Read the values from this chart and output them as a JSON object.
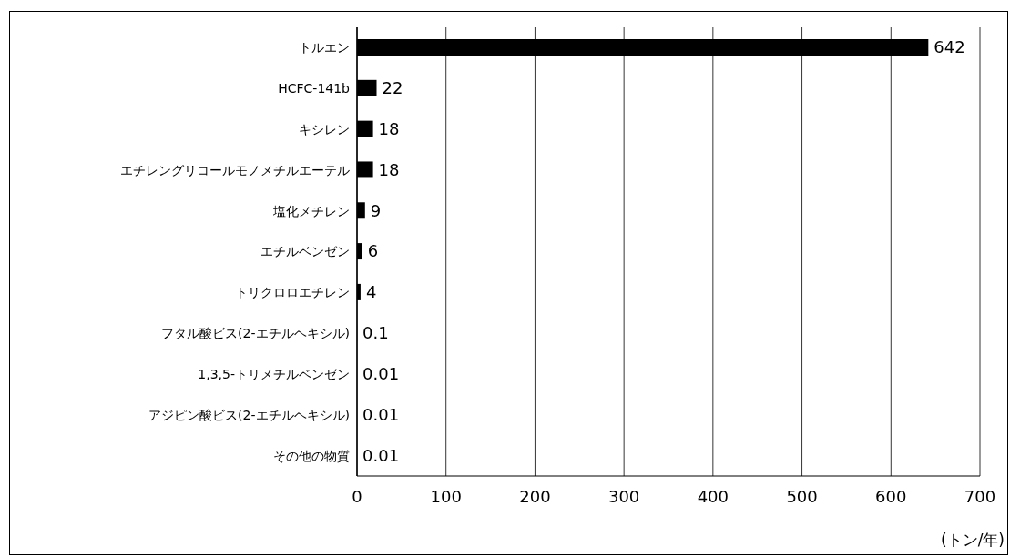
{
  "chart_data": {
    "type": "bar",
    "orientation": "horizontal",
    "categories": [
      "トルエン",
      "HCFC-141b",
      "キシレン",
      "エチレングリコールモノメチルエーテル",
      "塩化メチレン",
      "エチルベンゼン",
      "トリクロロエチレン",
      "フタル酸ビス(2-エチルヘキシル)",
      "1,3,5-トリメチルベンゼン",
      "アジピン酸ビス(2-エチルヘキシル)",
      "その他の物質"
    ],
    "values": [
      642,
      22,
      18,
      18,
      9,
      6,
      4,
      0.1,
      0.01,
      0.01,
      0.01
    ],
    "color": "#000000",
    "xlabel": "(トン/年)",
    "xlim": [
      0,
      700
    ],
    "xticks": [
      0,
      100,
      200,
      300,
      400,
      500,
      600,
      700
    ],
    "grid": "x",
    "data_labels": true
  }
}
